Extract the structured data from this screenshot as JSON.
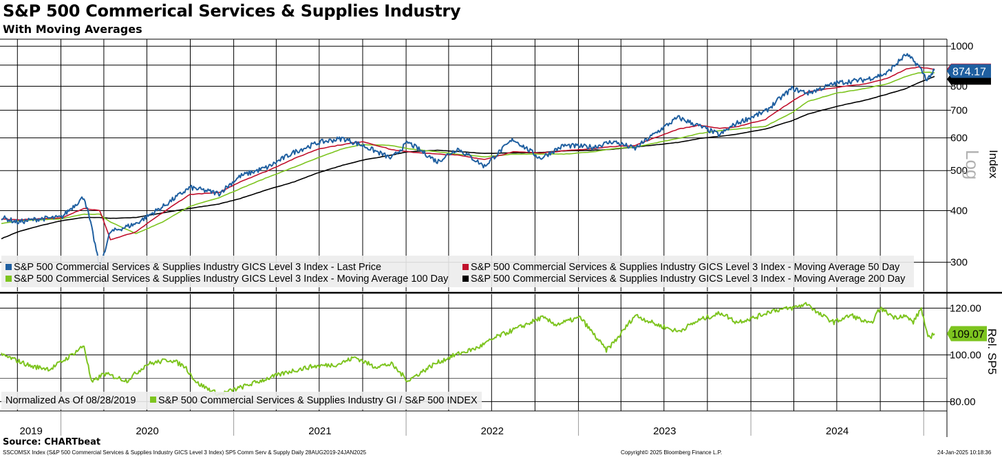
{
  "header": {
    "title": "S&P 500 Commerical Services & Supplies Industry",
    "subtitle": "With Moving Averages"
  },
  "footer": {
    "source": "Source: CHARTbeat",
    "description": "SSCOMSX Index (S&P 500 Commercial Services & Supplies Industry GICS Level 3 Index) SP5 Comm Serv & Supply  Daily 28AUG2019-24JAN2025",
    "copyright": "Copyright© 2025 Bloomberg Finance L.P.",
    "timestamp": "24-Jan-2025 10:18:36"
  },
  "colors": {
    "last_price": "#1f5fa0",
    "ma50": "#c0102c",
    "ma100": "#7dc41f",
    "ma200": "#000000",
    "relative": "#7dc41f"
  },
  "chart_data": [
    {
      "type": "line",
      "title": "S&P 500 Commerical Services & Supplies Industry",
      "ylabel": "Index",
      "scale_label": "Log",
      "yscale": "log",
      "ylim": [
        255,
        1040
      ],
      "yticks": [
        1000,
        900,
        800,
        700,
        600,
        500,
        400,
        300
      ],
      "ytick_labels": [
        "1000",
        "",
        "800",
        "700",
        "600",
        "500",
        "400",
        "300"
      ],
      "grid": true,
      "legend_position": "bottom",
      "x_dates": [
        "2019-08-28",
        "2019-10-01",
        "2019-11-15",
        "2020-01-02",
        "2020-02-19",
        "2020-03-23",
        "2020-04-15",
        "2020-06-08",
        "2020-08-03",
        "2020-10-01",
        "2020-12-01",
        "2021-01-15",
        "2021-03-15",
        "2021-05-10",
        "2021-07-01",
        "2021-08-20",
        "2021-10-01",
        "2021-12-01",
        "2022-01-05",
        "2022-03-08",
        "2022-04-20",
        "2022-06-16",
        "2022-08-16",
        "2022-10-12",
        "2022-12-01",
        "2023-02-01",
        "2023-03-15",
        "2023-05-01",
        "2023-07-31",
        "2023-09-15",
        "2023-10-27",
        "2023-12-01",
        "2024-02-01",
        "2024-03-28",
        "2024-05-01",
        "2024-07-01",
        "2024-08-30",
        "2024-10-15",
        "2024-11-25",
        "2024-12-20",
        "2025-01-08",
        "2025-01-24"
      ],
      "series": [
        {
          "name": "S&P 500 Commercial Services & Supplies Industry GICS Level 3 Index - Last Price",
          "values": [
            385,
            375,
            382,
            385,
            432,
            290,
            355,
            372,
            408,
            455,
            440,
            485,
            510,
            555,
            585,
            598,
            575,
            535,
            585,
            525,
            565,
            512,
            595,
            535,
            575,
            570,
            588,
            565,
            672,
            640,
            610,
            650,
            695,
            790,
            770,
            815,
            830,
            860,
            955,
            900,
            830,
            874.17
          ]
        },
        {
          "name": "S&P 500 Commercial Services & Supplies Industry GICS Level 3 Index - Moving Average 50 Day",
          "values": [
            382,
            380,
            382,
            384,
            405,
            400,
            340,
            355,
            395,
            438,
            442,
            470,
            500,
            535,
            565,
            578,
            588,
            562,
            555,
            548,
            545,
            532,
            555,
            552,
            558,
            565,
            572,
            575,
            630,
            644,
            632,
            638,
            665,
            735,
            775,
            795,
            810,
            835,
            880,
            890,
            885,
            880
          ]
        },
        {
          "name": "S&P 500 Commercial Services & Supplies Industry GICS Level 3 Index - Moving Average 100 Day",
          "values": [
            372,
            378,
            380,
            382,
            392,
            392,
            375,
            352,
            375,
            410,
            430,
            452,
            482,
            510,
            538,
            565,
            578,
            575,
            565,
            555,
            548,
            540,
            548,
            548,
            548,
            555,
            565,
            570,
            598,
            615,
            625,
            630,
            640,
            690,
            735,
            770,
            790,
            810,
            845,
            862,
            865,
            862
          ]
        },
        {
          "name": "S&P 500 Commercial Services & Supplies Industry GICS Level 3 Index - Moving Average 200 Day",
          "values": [
            342,
            355,
            367,
            378,
            385,
            385,
            383,
            385,
            395,
            405,
            415,
            428,
            450,
            470,
            495,
            515,
            530,
            545,
            555,
            560,
            556,
            550,
            552,
            553,
            558,
            560,
            563,
            570,
            585,
            598,
            605,
            612,
            630,
            660,
            685,
            715,
            740,
            765,
            790,
            815,
            830,
            845
          ]
        }
      ],
      "end_labels": [
        "874.17",
        "880",
        "845"
      ]
    },
    {
      "type": "line",
      "ylabel": "Rel. SP5",
      "ylim": [
        76,
        126
      ],
      "yticks": [
        120,
        100,
        80
      ],
      "ytick_labels": [
        "120.00",
        "100.00",
        "80.00"
      ],
      "grid": true,
      "legend_position": "bottom-left",
      "x_dates": [
        "2019-08-28",
        "2019-09-25",
        "2019-11-01",
        "2019-12-10",
        "2020-01-17",
        "2020-02-19",
        "2020-03-06",
        "2020-04-01",
        "2020-05-20",
        "2020-07-01",
        "2020-08-20",
        "2020-09-20",
        "2020-10-15",
        "2020-12-01",
        "2021-01-15",
        "2021-03-15",
        "2021-05-01",
        "2021-06-15",
        "2021-08-10",
        "2021-09-15",
        "2021-10-25",
        "2021-12-01",
        "2022-01-05",
        "2022-03-01",
        "2022-04-15",
        "2022-06-01",
        "2022-07-15",
        "2022-09-01",
        "2022-10-15",
        "2022-11-15",
        "2023-01-05",
        "2023-03-01",
        "2023-03-24",
        "2023-05-01",
        "2023-06-15",
        "2023-07-31",
        "2023-09-15",
        "2023-10-31",
        "2023-12-01",
        "2024-01-10",
        "2024-02-15",
        "2024-03-28",
        "2024-05-01",
        "2024-05-20",
        "2024-06-25",
        "2024-08-01",
        "2024-09-10",
        "2024-10-01",
        "2024-11-01",
        "2024-11-20",
        "2024-12-10",
        "2024-12-27",
        "2025-01-10",
        "2025-01-24"
      ],
      "series": [
        {
          "name": "S&P 500 Commercial Services & Supplies Industry GI / S&P 500 INDEX",
          "values": [
            100,
            98,
            95,
            94,
            99,
            104,
            88,
            92,
            89,
            96,
            98,
            95,
            88,
            83,
            86,
            90,
            93,
            95,
            96,
            99,
            95,
            96,
            89,
            96,
            100,
            103,
            108,
            112,
            116,
            113,
            116,
            102,
            107,
            117,
            113,
            110,
            115,
            118,
            114,
            116,
            119,
            120,
            122,
            118,
            114,
            117,
            113,
            120,
            116,
            117,
            114,
            120,
            107,
            109.07
          ]
        }
      ],
      "end_label": "109.07"
    }
  ],
  "legends": {
    "main": [
      "S&P 500 Commercial Services & Supplies Industry GICS Level 3 Index - Last Price",
      "S&P 500 Commercial Services & Supplies Industry GICS Level 3 Index - Moving Average 50 Day",
      "S&P 500 Commercial Services & Supplies Industry GICS Level 3 Index - Moving Average 100 Day",
      "S&P 500 Commercial Services & Supplies Industry GICS Level 3 Index - Moving Average 200 Day"
    ],
    "relative_note": "Normalized As Of 08/28/2019",
    "relative_series": "S&P 500 Commercial Services & Supplies Industry GI / S&P 500 INDEX"
  },
  "x_axis": {
    "years": [
      "2019",
      "2020",
      "2021",
      "2022",
      "2023",
      "2024"
    ]
  }
}
